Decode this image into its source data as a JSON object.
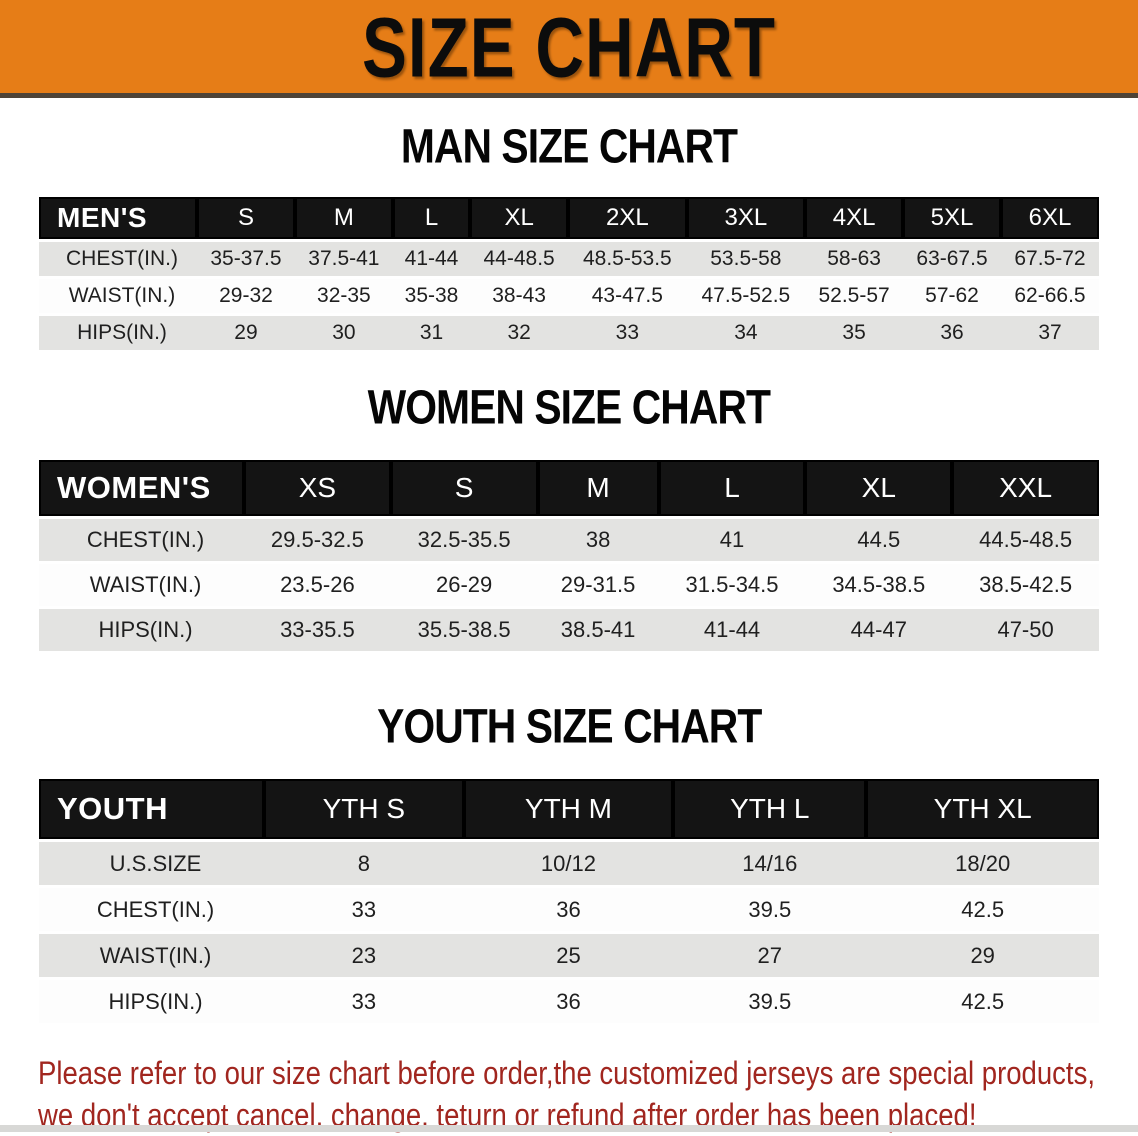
{
  "banner": {
    "title": "SIZE CHART"
  },
  "colors": {
    "banner_bg": "#E67D17",
    "header_bg": "#141414",
    "row_gray": "#E3E3E1",
    "row_white": "#FDFDFD",
    "disclaimer_red": "#A1261F"
  },
  "sections": [
    {
      "heading": "MAN SIZE CHART",
      "table": {
        "corner_label": "MEN'S",
        "columns": [
          "S",
          "M",
          "L",
          "XL",
          "2XL",
          "3XL",
          "4XL",
          "5XL",
          "6XL"
        ],
        "rows": [
          {
            "label": "CHEST(IN.)",
            "values": [
              "35-37.5",
              "37.5-41",
              "41-44",
              "44-48.5",
              "48.5-53.5",
              "53.5-58",
              "58-63",
              "63-67.5",
              "67.5-72"
            ]
          },
          {
            "label": "WAIST(IN.)",
            "values": [
              "29-32",
              "32-35",
              "35-38",
              "38-43",
              "43-47.5",
              "47.5-52.5",
              "52.5-57",
              "57-62",
              "62-66.5"
            ]
          },
          {
            "label": "HIPS(IN.)",
            "values": [
              "29",
              "30",
              "31",
              "32",
              "33",
              "34",
              "35",
              "36",
              "37"
            ]
          }
        ]
      }
    },
    {
      "heading": "WOMEN SIZE CHART",
      "table": {
        "corner_label": "WOMEN'S",
        "columns": [
          "XS",
          "S",
          "M",
          "L",
          "XL",
          "XXL"
        ],
        "rows": [
          {
            "label": "CHEST(IN.)",
            "values": [
              "29.5-32.5",
              "32.5-35.5",
              "38",
              "41",
              "44.5",
              "44.5-48.5"
            ]
          },
          {
            "label": "WAIST(IN.)",
            "values": [
              "23.5-26",
              "26-29",
              "29-31.5",
              "31.5-34.5",
              "34.5-38.5",
              "38.5-42.5"
            ]
          },
          {
            "label": "HIPS(IN.)",
            "values": [
              "33-35.5",
              "35.5-38.5",
              "38.5-41",
              "41-44",
              "44-47",
              "47-50"
            ]
          }
        ]
      }
    },
    {
      "heading": "YOUTH SIZE CHART",
      "table": {
        "corner_label": "YOUTH",
        "columns": [
          "YTH S",
          "YTH M",
          "YTH L",
          "YTH XL"
        ],
        "rows": [
          {
            "label": "U.S.SIZE",
            "values": [
              "8",
              "10/12",
              "14/16",
              "18/20"
            ]
          },
          {
            "label": "CHEST(IN.)",
            "values": [
              "33",
              "36",
              "39.5",
              "42.5"
            ]
          },
          {
            "label": "WAIST(IN.)",
            "values": [
              "23",
              "25",
              "27",
              "29"
            ]
          },
          {
            "label": "HIPS(IN.)",
            "values": [
              "33",
              "36",
              "39.5",
              "42.5"
            ]
          }
        ]
      }
    }
  ],
  "disclaimer": {
    "line1": "Please refer to our size chart before order,the customized jerseys are special products,",
    "line2": "we don't accept cancel, change, teturn or refund after order has been placed!"
  }
}
